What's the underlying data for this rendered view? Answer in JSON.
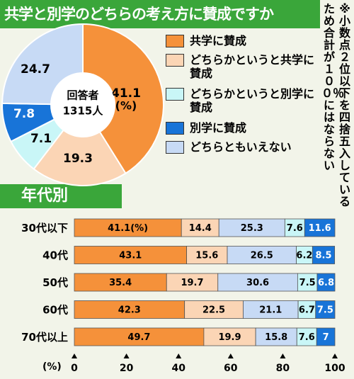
{
  "title": "共学と別学のどちらの考え方に賛成ですか",
  "note": "※小数点２位以下を四捨五入しているため合計が１００％にはならない",
  "center_label": [
    "回答者",
    "1315人"
  ],
  "pct_label": "(%)",
  "by_age_label": "年代別",
  "axis_unit": "(%)",
  "colors": [
    "#f5913a",
    "#fbd5b5",
    "#c9f6f7",
    "#1874d8",
    "#c7daf5"
  ],
  "chart_data": [
    {
      "type": "pie",
      "categories": [
        "共学に賛成",
        "どちらかというと共学に賛成",
        "どちらかというと別学に賛成",
        "別学に賛成",
        "どちらともいえない"
      ],
      "values": [
        41.1,
        19.3,
        7.1,
        7.8,
        24.7
      ],
      "labels": [
        "41.1",
        "19.3",
        "7.1",
        "7.8",
        "24.7"
      ]
    },
    {
      "type": "bar",
      "stacked": true,
      "orientation": "horizontal",
      "categories": [
        "30代以下",
        "40代",
        "50代",
        "60代",
        "70代以上"
      ],
      "series": [
        {
          "name": "共学に賛成",
          "values": [
            41.1,
            43.1,
            35.4,
            42.3,
            49.7
          ],
          "labels": [
            "41.1",
            "43.1",
            "35.4",
            "42.3",
            "49.7"
          ]
        },
        {
          "name": "どちらかというと共学に賛成",
          "values": [
            14.4,
            15.6,
            19.7,
            22.5,
            19.9
          ],
          "labels": [
            "14.4",
            "15.6",
            "19.7",
            "22.5",
            "19.9"
          ]
        },
        {
          "name": "どちらともいえない",
          "values": [
            25.3,
            26.5,
            30.6,
            21.1,
            15.8
          ],
          "labels": [
            "25.3",
            "26.5",
            "30.6",
            "21.1",
            "15.8"
          ]
        },
        {
          "name": "どちらかというと別学に賛成",
          "values": [
            7.6,
            6.2,
            7.5,
            6.7,
            7.6
          ],
          "labels": [
            "7.6",
            "6.2",
            "7.5",
            "6.7",
            "7.6"
          ]
        },
        {
          "name": "別学に賛成",
          "values": [
            11.6,
            8.5,
            6.8,
            7.5,
            7
          ],
          "labels": [
            "11.6",
            "8.5",
            "6.8",
            "7.5",
            "7"
          ]
        }
      ],
      "first_label_suffix": "(%)",
      "xticks": [
        0,
        20,
        40,
        60,
        80,
        100
      ],
      "xlim": [
        0,
        100
      ]
    }
  ]
}
